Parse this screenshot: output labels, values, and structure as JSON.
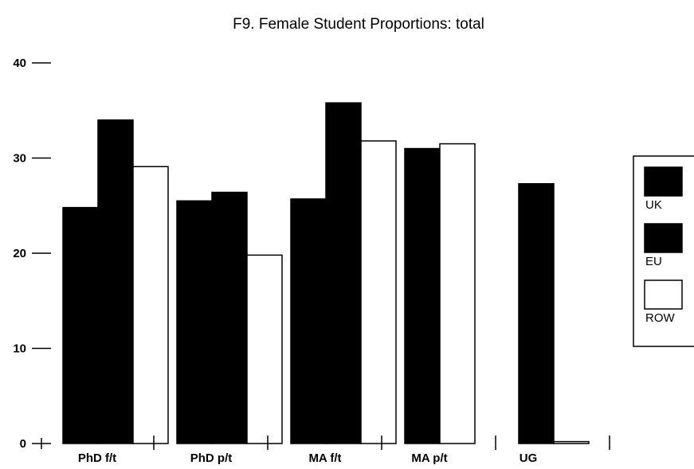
{
  "chart_data": {
    "type": "bar",
    "title": "F9.  Female Student Proportions: total",
    "xlabel": "",
    "ylabel": "",
    "ylim": [
      0,
      40
    ],
    "yticks": [
      0,
      10,
      20,
      30,
      40
    ],
    "categories": [
      "PhD f/t",
      "PhD p/t",
      "MA f/t",
      "MA p/t",
      "UG"
    ],
    "series": [
      {
        "name": "UK",
        "values": [
          24.8,
          25.5,
          25.7,
          null,
          null
        ]
      },
      {
        "name": "EU",
        "values": [
          34.0,
          26.4,
          35.8,
          31.0,
          27.3
        ]
      },
      {
        "name": "ROW",
        "values": [
          29.1,
          19.8,
          31.8,
          31.5,
          0.2
        ]
      }
    ],
    "colors": {
      "UK": "#000000",
      "EU": "#000000",
      "ROW": "#ffffff"
    },
    "legend_position": "right",
    "grid": false
  }
}
